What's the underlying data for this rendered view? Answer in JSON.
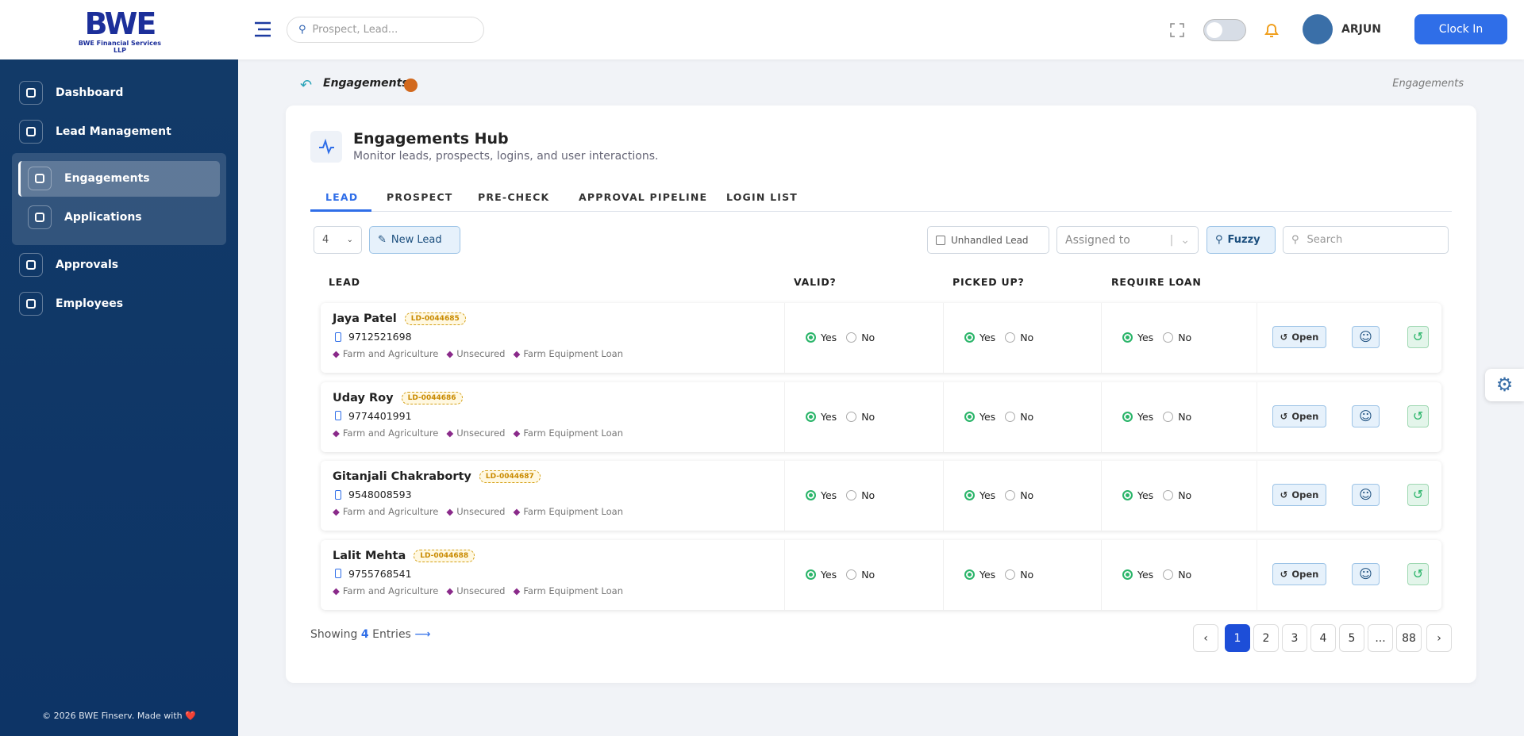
{
  "header": {
    "logo": "BWE",
    "logo_sub": "BWE Financial Services LLP",
    "search_placeholder": "Prospect, Lead...",
    "user": "ARJUN",
    "clock_in": "Clock In"
  },
  "sidebar": {
    "items": [
      "Dashboard",
      "Lead Management"
    ],
    "submenu": [
      "Engagements",
      "Applications"
    ],
    "items_after": [
      "Approvals",
      "Employees"
    ],
    "footer": "© 2026 BWE Finserv. Made with ❤️"
  },
  "breadcrumb": {
    "title": "Engagements",
    "trail": "Engagements"
  },
  "hub": {
    "title": "Engagements Hub",
    "subtitle": "Monitor leads, prospects, logins, and user interactions."
  },
  "tabs": [
    "LEAD",
    "PROSPECT",
    "PRE-CHECK",
    "APPROVAL PIPELINE",
    "LOGIN LIST"
  ],
  "toolbar": {
    "page_size": "4",
    "new_lead": "New Lead",
    "unhandled": "Unhandled Lead",
    "assigned": "Assigned to",
    "fuzzy": "Fuzzy",
    "search": "Search"
  },
  "table": {
    "columns": [
      "LEAD",
      "VALID?",
      "PICKED UP?",
      "REQUIRE LOAN"
    ],
    "options": [
      "Yes",
      "No"
    ],
    "action": "Open",
    "rows": [
      {
        "name": "Jaya Patel",
        "id": "LD-0044685",
        "phone": "9712521698",
        "sector": "Farm and Agriculture",
        "security": "Unsecured",
        "product": "Farm Equipment Loan"
      },
      {
        "name": "Uday Roy",
        "id": "LD-0044686",
        "phone": "9774401991",
        "sector": "Farm and Agriculture",
        "security": "Unsecured",
        "product": "Farm Equipment Loan"
      },
      {
        "name": "Gitanjali Chakraborty",
        "id": "LD-0044687",
        "phone": "9548008593",
        "sector": "Farm and Agriculture",
        "security": "Unsecured",
        "product": "Farm Equipment Loan"
      },
      {
        "name": "Lalit Mehta",
        "id": "LD-0044688",
        "phone": "9755768541",
        "sector": "Farm and Agriculture",
        "security": "Unsecured",
        "product": "Farm Equipment Loan"
      }
    ]
  },
  "footer": {
    "showing": "Showing",
    "count": "4",
    "entries": "Entries"
  },
  "pagination": [
    "1",
    "2",
    "3",
    "4",
    "5",
    "...",
    "88"
  ]
}
